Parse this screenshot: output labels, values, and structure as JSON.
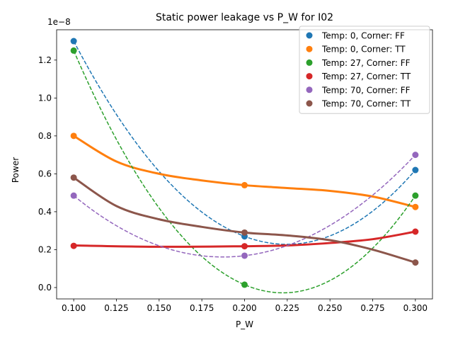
{
  "chart_data": {
    "type": "scatter",
    "title": "Static power leakage vs P_W for I02",
    "xlabel": "P_W",
    "ylabel": "Power",
    "offset_text": "1e−8",
    "x": [
      0.1,
      0.2,
      0.3
    ],
    "xlim": [
      0.09,
      0.31
    ],
    "ylim": [
      -0.06,
      1.36
    ],
    "y_unit_scale": "1e-8",
    "x_ticks": [
      "0.100",
      "0.125",
      "0.150",
      "0.175",
      "0.200",
      "0.225",
      "0.250",
      "0.275",
      "0.300"
    ],
    "x_tick_values": [
      0.1,
      0.125,
      0.15,
      0.175,
      0.2,
      0.225,
      0.25,
      0.275,
      0.3
    ],
    "y_ticks": [
      "0.0",
      "0.2",
      "0.4",
      "0.6",
      "0.8",
      "1.0",
      "1.2"
    ],
    "y_tick_values": [
      0.0,
      0.2,
      0.4,
      0.6,
      0.8,
      1.0,
      1.2
    ],
    "legend_position": "upper-right",
    "series": [
      {
        "name": "Temp: 0, Corner: FF",
        "color": "#1f77b4",
        "values": [
          1.3,
          0.27,
          0.62
        ],
        "fit": "dashed"
      },
      {
        "name": "Temp: 0, Corner: TT",
        "color": "#ff7f0e",
        "values": [
          0.8,
          0.54,
          0.425
        ],
        "fit": "solid",
        "fit_points": [
          [
            0.1,
            0.8
          ],
          [
            0.125,
            0.665
          ],
          [
            0.15,
            0.6
          ],
          [
            0.175,
            0.565
          ],
          [
            0.2,
            0.54
          ],
          [
            0.225,
            0.525
          ],
          [
            0.25,
            0.51
          ],
          [
            0.275,
            0.48
          ],
          [
            0.3,
            0.425
          ]
        ]
      },
      {
        "name": "Temp: 27, Corner: FF",
        "color": "#2ca02c",
        "values": [
          1.25,
          0.015,
          0.485
        ],
        "fit": "dashed"
      },
      {
        "name": "Temp: 27, Corner: TT",
        "color": "#d62728",
        "values": [
          0.22,
          0.218,
          0.295
        ],
        "fit": "solid",
        "fit_points": [
          [
            0.1,
            0.222
          ],
          [
            0.15,
            0.215
          ],
          [
            0.2,
            0.218
          ],
          [
            0.225,
            0.222
          ],
          [
            0.25,
            0.235
          ],
          [
            0.275,
            0.255
          ],
          [
            0.3,
            0.295
          ]
        ]
      },
      {
        "name": "Temp: 70, Corner: FF",
        "color": "#9467bd",
        "values": [
          0.485,
          0.168,
          0.7
        ],
        "fit": "dashed"
      },
      {
        "name": "Temp: 70, Corner: TT",
        "color": "#8c564b",
        "values": [
          0.58,
          0.29,
          0.132
        ],
        "fit": "solid",
        "fit_points": [
          [
            0.1,
            0.58
          ],
          [
            0.125,
            0.43
          ],
          [
            0.15,
            0.36
          ],
          [
            0.175,
            0.32
          ],
          [
            0.2,
            0.29
          ],
          [
            0.225,
            0.275
          ],
          [
            0.25,
            0.25
          ],
          [
            0.275,
            0.2
          ],
          [
            0.3,
            0.132
          ]
        ]
      }
    ]
  }
}
